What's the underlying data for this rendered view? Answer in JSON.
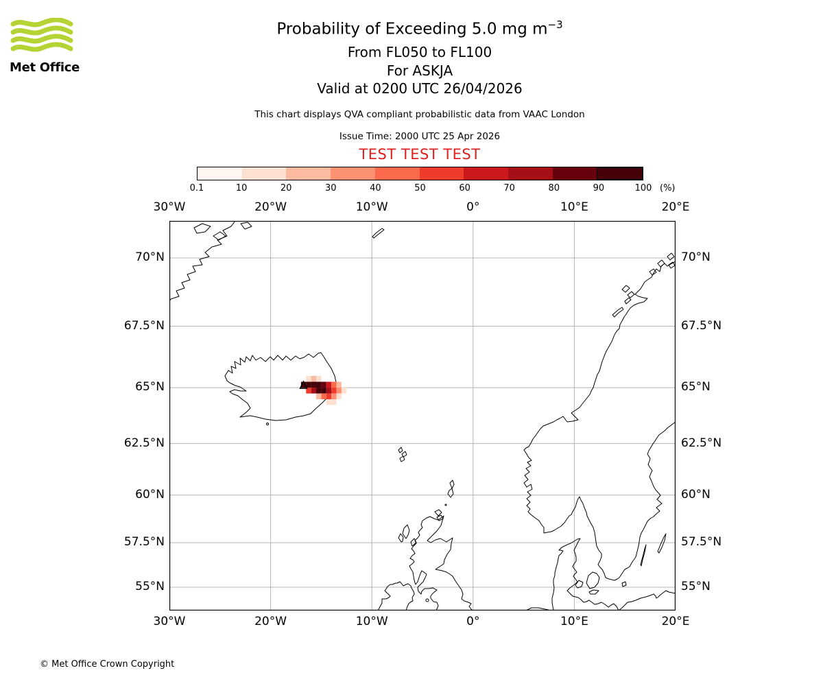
{
  "logo": {
    "text": "Met Office"
  },
  "header": {
    "title_main": "Probability of Exceeding 5.0 mg m",
    "title_sup": "−3",
    "subtitle_fl": "From FL050 to FL100",
    "subtitle_volcano": "For ASKJA",
    "subtitle_valid": "Valid at 0200 UTC 26/04/2026",
    "description": "This chart displays QVA compliant probabilistic data from VAAC London",
    "issue_time": "Issue Time: 2000 UTC 25 Apr 2026",
    "test_banner": "TEST TEST TEST"
  },
  "colors": {
    "test_text": "#dd2020",
    "logo_green": "#b5d334",
    "grid_line": "#b5b5b5",
    "coastline": "#000000"
  },
  "colorbar": {
    "tick_labels": [
      "0.1",
      "10",
      "20",
      "30",
      "40",
      "50",
      "60",
      "70",
      "80",
      "90",
      "100"
    ],
    "unit_label": "(%)",
    "colors": [
      "#fff5f0",
      "#fee0d2",
      "#fcbba1",
      "#fc9272",
      "#fb6a4a",
      "#ef3b2c",
      "#cb181d",
      "#a50f15",
      "#67000d",
      "#450008"
    ]
  },
  "map": {
    "lon_ticks": [
      {
        "label": "30°W",
        "lon": -30
      },
      {
        "label": "20°W",
        "lon": -20
      },
      {
        "label": "10°W",
        "lon": -10
      },
      {
        "label": "0°",
        "lon": 0
      },
      {
        "label": "10°E",
        "lon": 10
      },
      {
        "label": "20°E",
        "lon": 20
      }
    ],
    "lat_ticks": [
      {
        "label": "70°N",
        "lat": 70
      },
      {
        "label": "67.5°N",
        "lat": 67.5
      },
      {
        "label": "65°N",
        "lat": 65
      },
      {
        "label": "62.5°N",
        "lat": 62.5
      },
      {
        "label": "60°N",
        "lat": 60
      },
      {
        "label": "57.5°N",
        "lat": 57.5
      },
      {
        "label": "55°N",
        "lat": 55
      }
    ]
  },
  "footer": {
    "copyright": "© Met Office Crown Copyright"
  },
  "chart_data": {
    "type": "heatmap",
    "title": "Probability of Exceeding 5.0 mg m⁻³",
    "threshold_mg_m3": 5.0,
    "flight_levels": "FL050 to FL100",
    "volcano": {
      "name": "ASKJA",
      "lat": 65.03,
      "lon": -16.75
    },
    "valid_time": "0200 UTC 26/04/2026",
    "issue_time": "2000 UTC 25 Apr 2026",
    "source": "VAAC London",
    "projection": "mercator",
    "extent": {
      "lon": [
        -30,
        20
      ],
      "lat": [
        53.65,
        71.3
      ]
    },
    "probability_bins_percent": [
      0.1,
      10,
      20,
      30,
      40,
      50,
      60,
      70,
      80,
      90,
      100
    ],
    "cell_size_deg": {
      "lon": 0.5,
      "lat": 0.25
    },
    "cells_format": [
      "lon_west",
      "lat_south",
      "percent"
    ],
    "cells": [
      [
        -16.5,
        65.25,
        15
      ],
      [
        -16.0,
        65.25,
        25
      ],
      [
        -15.5,
        65.25,
        12
      ],
      [
        -17.0,
        65.0,
        92
      ],
      [
        -16.5,
        65.0,
        97
      ],
      [
        -16.0,
        65.0,
        97
      ],
      [
        -15.5,
        65.0,
        95
      ],
      [
        -15.0,
        65.0,
        85
      ],
      [
        -14.5,
        65.0,
        65
      ],
      [
        -14.0,
        65.0,
        45
      ],
      [
        -13.5,
        65.0,
        22
      ],
      [
        -16.5,
        64.75,
        55
      ],
      [
        -16.0,
        64.75,
        75
      ],
      [
        -15.5,
        64.75,
        95
      ],
      [
        -15.0,
        64.75,
        95
      ],
      [
        -14.5,
        64.75,
        75
      ],
      [
        -14.0,
        64.75,
        55
      ],
      [
        -13.5,
        64.75,
        35
      ],
      [
        -13.0,
        64.75,
        18
      ],
      [
        -15.5,
        64.5,
        28
      ],
      [
        -15.0,
        64.5,
        45
      ],
      [
        -14.5,
        64.5,
        55
      ],
      [
        -14.0,
        64.5,
        32
      ],
      [
        -13.5,
        64.5,
        15
      ],
      [
        -14.5,
        64.25,
        12
      ],
      [
        -14.0,
        64.25,
        15
      ]
    ]
  }
}
